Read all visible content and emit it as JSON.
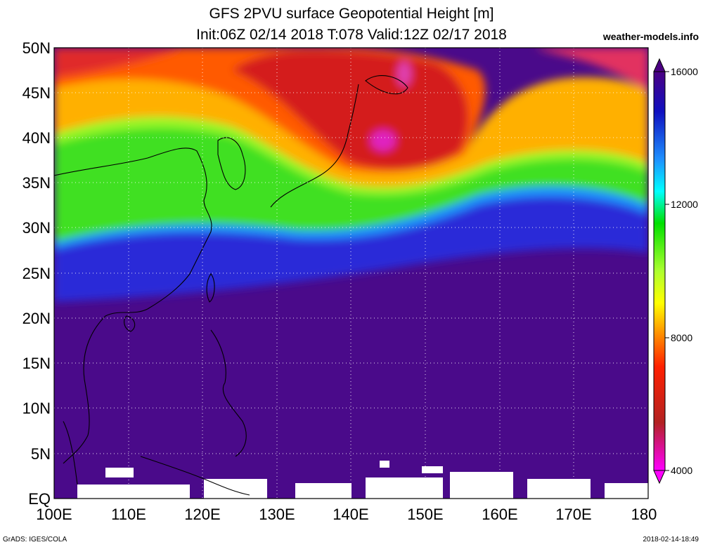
{
  "header": {
    "title_line1": "GFS 2PVU surface Geopotential Height [m]",
    "title_line2": "Init:06Z 02/14 2018 T:078 Valid:12Z 02/17 2018",
    "site": "weather-models.info"
  },
  "map": {
    "lat_labels": [
      "50N",
      "45N",
      "40N",
      "35N",
      "30N",
      "25N",
      "20N",
      "15N",
      "10N",
      "5N",
      "EQ"
    ],
    "lon_labels": [
      "100E",
      "110E",
      "120E",
      "130E",
      "140E",
      "150E",
      "160E",
      "170E",
      "180"
    ],
    "colors": {
      "low": "#d22323",
      "mid_low": "#ff8c00",
      "mid": "#7cfc00",
      "high": "#2323e0",
      "very_high": "#4a0a8a",
      "missing": "#ffffff"
    }
  },
  "colorbar": {
    "labels": [
      "16000",
      "12000",
      "8000",
      "4000"
    ],
    "stops": [
      "#4b0082",
      "#1010c0",
      "#1e90ff",
      "#00ffff",
      "#00e000",
      "#adff2f",
      "#ffff00",
      "#ff8c00",
      "#ff2000",
      "#b22222",
      "#ff00ff"
    ]
  },
  "footer": {
    "left": "GrADS: IGES/COLA",
    "right": "2018-02-14-18:49"
  }
}
